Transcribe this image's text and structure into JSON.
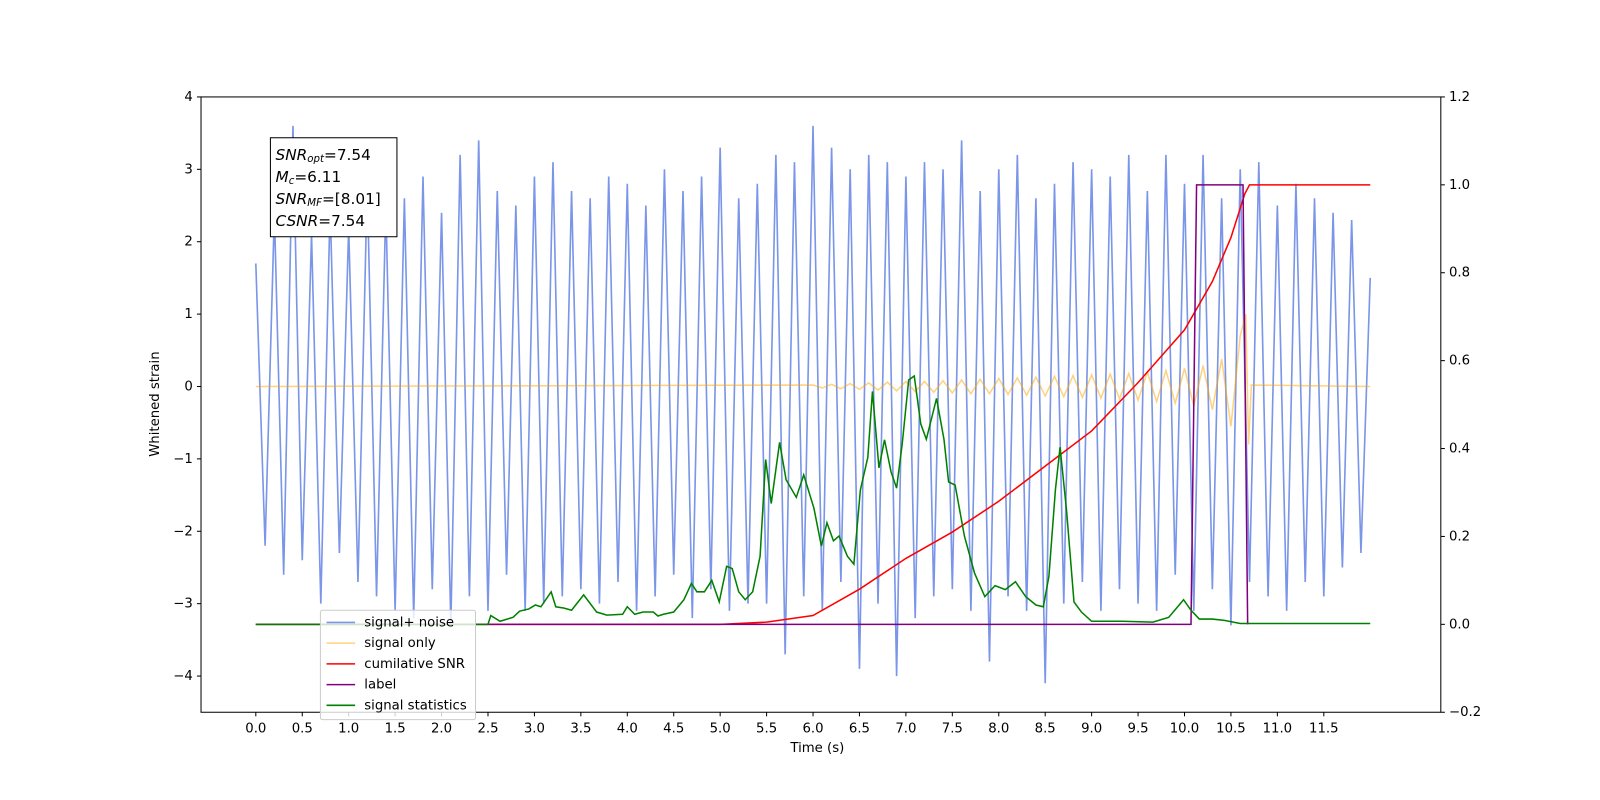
{
  "chart_data": {
    "type": "line",
    "xlabel": "Time (s)",
    "ylabel": "Whitened strain",
    "xlim": [
      -0.59,
      12.76
    ],
    "ylim": [
      -4.5,
      4
    ],
    "y2lim": [
      -0.2,
      1.2
    ],
    "xticks": [
      {
        "value": 0,
        "label": "0.0"
      },
      0.5,
      {
        "value": 1,
        "label": "1.0"
      },
      1.5,
      {
        "value": 2,
        "label": "2.0"
      },
      2.5,
      {
        "value": 3,
        "label": "3.0"
      },
      3.5,
      {
        "value": 4,
        "label": "4.0"
      },
      4.5,
      {
        "value": 5,
        "label": "5.0"
      },
      5.5,
      {
        "value": 6,
        "label": "6.0"
      },
      6.5,
      {
        "value": 7,
        "label": "7.0"
      },
      7.5,
      {
        "value": 8,
        "label": "8.0"
      },
      8.5,
      {
        "value": 9,
        "label": "9.0"
      },
      9.5,
      {
        "value": 10,
        "label": "10.0"
      },
      10.5,
      {
        "value": 11,
        "label": "11.0"
      },
      11.5
    ],
    "yticks": [
      {
        "value": -4,
        "label": "−4"
      },
      {
        "value": -3,
        "label": "−3"
      },
      {
        "value": -2,
        "label": "−2"
      },
      {
        "value": -1,
        "label": "−1"
      },
      0,
      1,
      2,
      3,
      4
    ],
    "y2ticks": [
      {
        "value": -0.2,
        "label": "−0.2"
      },
      {
        "value": 0,
        "label": "0.0"
      },
      0.2,
      0.4,
      0.6,
      0.8,
      {
        "value": 1,
        "label": "1.0"
      },
      1.2
    ],
    "legend": "lower left",
    "annotation": [
      {
        "main": "SNR",
        "sub": "opt",
        "value": "=7.54"
      },
      {
        "main": "M",
        "sub": "c",
        "value": "=6.11"
      },
      {
        "main": "SNR",
        "sub": "MF",
        "value": "=[8.01]"
      },
      {
        "main": "CSNR",
        "sub": "",
        "value": "=7.54"
      }
    ],
    "series": [
      {
        "name": "signal+ noise",
        "color": "#7b96e8",
        "axis": "y",
        "x": [
          0,
          0.1,
          0.2,
          0.3,
          0.4,
          0.5,
          0.6,
          0.7,
          0.8,
          0.9,
          1,
          1.1,
          1.2,
          1.3,
          1.4,
          1.5,
          1.6,
          1.7,
          1.8,
          1.9,
          2,
          2.1,
          2.2,
          2.3,
          2.4,
          2.5,
          2.6,
          2.7,
          2.8,
          2.9,
          3,
          3.1,
          3.2,
          3.3,
          3.4,
          3.5,
          3.6,
          3.7,
          3.8,
          3.9,
          4,
          4.1,
          4.2,
          4.3,
          4.4,
          4.5,
          4.6,
          4.7,
          4.8,
          4.9,
          5,
          5.1,
          5.2,
          5.3,
          5.4,
          5.5,
          5.6,
          5.7,
          5.8,
          5.9,
          6,
          6.1,
          6.2,
          6.3,
          6.4,
          6.5,
          6.6,
          6.7,
          6.8,
          6.9,
          7,
          7.1,
          7.2,
          7.3,
          7.4,
          7.5,
          7.6,
          7.7,
          7.8,
          7.9,
          8,
          8.1,
          8.2,
          8.3,
          8.4,
          8.5,
          8.6,
          8.7,
          8.8,
          8.9,
          9,
          9.1,
          9.2,
          9.3,
          9.4,
          9.5,
          9.6,
          9.7,
          9.8,
          9.9,
          10,
          10.1,
          10.2,
          10.3,
          10.4,
          10.5,
          10.6,
          10.7,
          10.8,
          10.9,
          11,
          11.1,
          11.2,
          11.3,
          11.4,
          11.5,
          11.6,
          11.7,
          11.8,
          11.9,
          12
        ],
        "values": [
          1.7,
          -2.2,
          2.4,
          -2.6,
          3.6,
          -2.4,
          2.1,
          -3.0,
          2.5,
          -2.3,
          2.2,
          -2.7,
          2.8,
          -2.9,
          2.5,
          -3.1,
          2.6,
          -3.2,
          2.9,
          -2.8,
          2.4,
          -3.3,
          3.2,
          -2.9,
          3.4,
          -3.1,
          2.7,
          -2.6,
          2.5,
          -3.1,
          2.9,
          -3.0,
          3.1,
          -2.9,
          2.7,
          -2.8,
          2.6,
          -3.0,
          2.9,
          -2.7,
          2.8,
          -3.1,
          2.5,
          -2.9,
          3.0,
          -2.6,
          2.7,
          -3.2,
          2.9,
          -2.8,
          3.3,
          -3.1,
          2.6,
          -3.0,
          2.8,
          -3.0,
          3.2,
          -3.7,
          3.1,
          -2.9,
          3.6,
          -3.1,
          3.3,
          -2.7,
          3.0,
          -3.9,
          3.2,
          -3.0,
          3.1,
          -4.0,
          2.9,
          -3.2,
          3.1,
          -2.9,
          3.0,
          -2.8,
          3.4,
          -3.1,
          2.7,
          -3.8,
          3.0,
          -2.9,
          3.2,
          -3.1,
          2.6,
          -4.1,
          2.8,
          -3.0,
          3.1,
          -2.7,
          3.0,
          -3.1,
          2.9,
          -2.8,
          3.2,
          -3.0,
          2.7,
          -3.1,
          3.2,
          -2.6,
          2.8,
          -3.1,
          3.2,
          -2.8,
          2.6,
          -3.3,
          3.0,
          -2.7,
          3.1,
          -2.9,
          2.5,
          -3.1,
          2.8,
          -2.7,
          2.6,
          -2.9,
          2.4,
          -2.5,
          2.3,
          -2.3,
          1.5
        ]
      },
      {
        "name": "signal only",
        "color": "#ffa500",
        "axis": "y",
        "x": [
          0,
          6,
          6.1,
          6.2,
          6.3,
          6.4,
          6.5,
          6.6,
          6.7,
          6.8,
          6.9,
          7,
          7.1,
          7.2,
          7.3,
          7.4,
          7.5,
          7.6,
          7.7,
          7.8,
          7.9,
          8,
          8.1,
          8.2,
          8.3,
          8.4,
          8.5,
          8.6,
          8.7,
          8.8,
          8.9,
          9,
          9.1,
          9.2,
          9.3,
          9.4,
          9.5,
          9.6,
          9.7,
          9.8,
          9.9,
          10,
          10.1,
          10.2,
          10.3,
          10.4,
          10.5,
          10.6,
          10.66,
          10.69,
          10.72,
          12
        ],
        "values": [
          0,
          0.02,
          -0.02,
          0.03,
          -0.03,
          0.04,
          -0.04,
          0.05,
          -0.05,
          0.06,
          -0.06,
          0.07,
          -0.07,
          0.07,
          -0.08,
          0.08,
          -0.09,
          0.09,
          -0.1,
          0.1,
          -0.1,
          0.11,
          -0.11,
          0.12,
          -0.12,
          0.13,
          -0.13,
          0.14,
          -0.14,
          0.15,
          -0.15,
          0.16,
          -0.16,
          0.17,
          -0.17,
          0.18,
          -0.19,
          0.2,
          -0.21,
          0.22,
          -0.23,
          0.25,
          -0.27,
          0.29,
          -0.32,
          0.38,
          -0.55,
          0.7,
          1.0,
          -0.8,
          0.02,
          0
        ]
      },
      {
        "name": "cumilative SNR",
        "color": "#ff0000",
        "axis": "y2",
        "x": [
          0,
          5,
          5.5,
          6,
          6.5,
          7,
          7.5,
          8,
          8.5,
          9,
          9.5,
          10,
          10.3,
          10.5,
          10.65,
          10.7,
          12
        ],
        "values": [
          0,
          0,
          0.005,
          0.02,
          0.08,
          0.15,
          0.21,
          0.28,
          0.36,
          0.44,
          0.55,
          0.67,
          0.78,
          0.88,
          0.98,
          1.0,
          1.0
        ]
      },
      {
        "name": "label",
        "color": "#800080",
        "axis": "y2",
        "x": [
          0,
          10.07,
          10.13,
          10.63,
          10.68
        ],
        "values": [
          0,
          0,
          1,
          1,
          0
        ]
      },
      {
        "name": "signal statistics",
        "color": "#008000",
        "axis": "y2",
        "x": [
          0,
          2.5,
          2.53,
          2.63,
          2.77,
          2.84,
          2.94,
          3.01,
          3.07,
          3.18,
          3.23,
          3.32,
          3.4,
          3.53,
          3.67,
          3.78,
          3.95,
          4.0,
          4.08,
          4.17,
          4.28,
          4.33,
          4.39,
          4.5,
          4.61,
          4.69,
          4.75,
          4.83,
          4.91,
          4.99,
          5.07,
          5.13,
          5.2,
          5.27,
          5.35,
          5.43,
          5.49,
          5.55,
          5.64,
          5.71,
          5.82,
          5.9,
          6.01,
          6.09,
          6.15,
          6.22,
          6.28,
          6.37,
          6.44,
          6.51,
          6.59,
          6.64,
          6.71,
          6.77,
          6.84,
          6.9,
          6.96,
          7.03,
          7.09,
          7.16,
          7.22,
          7.33,
          7.41,
          7.46,
          7.53,
          7.63,
          7.74,
          7.85,
          7.96,
          8.07,
          8.18,
          8.29,
          8.4,
          8.48,
          8.54,
          8.61,
          8.66,
          8.73,
          8.81,
          8.89,
          9.0,
          9.33,
          9.66,
          9.83,
          9.99,
          10.07,
          10.16,
          10.3,
          10.43,
          10.6,
          12.0
        ],
        "values": [
          0,
          0,
          0.02,
          0.007,
          0.016,
          0.03,
          0.035,
          0.044,
          0.04,
          0.074,
          0.04,
          0.037,
          0.032,
          0.067,
          0.028,
          0.021,
          0.023,
          0.04,
          0.023,
          0.028,
          0.028,
          0.019,
          0.023,
          0.028,
          0.056,
          0.093,
          0.074,
          0.074,
          0.1,
          0.051,
          0.132,
          0.127,
          0.074,
          0.056,
          0.074,
          0.155,
          0.375,
          0.275,
          0.414,
          0.329,
          0.289,
          0.34,
          0.264,
          0.178,
          0.231,
          0.19,
          0.201,
          0.155,
          0.137,
          0.306,
          0.38,
          0.53,
          0.356,
          0.42,
          0.347,
          0.31,
          0.41,
          0.556,
          0.565,
          0.456,
          0.421,
          0.514,
          0.421,
          0.324,
          0.317,
          0.201,
          0.116,
          0.063,
          0.088,
          0.079,
          0.097,
          0.063,
          0.044,
          0.04,
          0.109,
          0.306,
          0.403,
          0.259,
          0.051,
          0.028,
          0.007,
          0.007,
          0.005,
          0.016,
          0.056,
          0.032,
          0.012,
          0.012,
          0.009,
          0.002,
          0.002
        ]
      }
    ]
  }
}
